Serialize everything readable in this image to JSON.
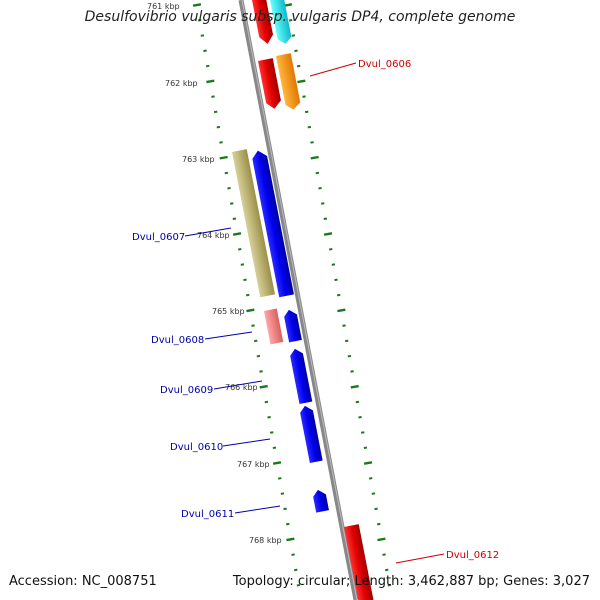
{
  "title": "Desulfovibrio vulgaris subsp. vulgaris DP4, complete genome",
  "footer": {
    "accession": "Accession: NC_008751",
    "topology": "Topology: circular; Length: 3,462,887 bp; Genes: 3,027"
  },
  "ticks": [
    {
      "label": "761 kbp"
    },
    {
      "label": "762 kbp"
    },
    {
      "label": "763 kbp"
    },
    {
      "label": "764 kbp"
    },
    {
      "label": "765 kbp"
    },
    {
      "label": "766 kbp"
    },
    {
      "label": "767 kbp"
    },
    {
      "label": "768 kbp"
    }
  ],
  "gene_labels": [
    {
      "text": "Dvul_0606",
      "color": "#cc0000"
    },
    {
      "text": "Dvul_0607",
      "color": "#0000aa"
    },
    {
      "text": "Dvul_0608",
      "color": "#0000aa"
    },
    {
      "text": "Dvul_0609",
      "color": "#0000aa"
    },
    {
      "text": "Dvul_0610",
      "color": "#0000aa"
    },
    {
      "text": "Dvul_0611",
      "color": "#0000aa"
    },
    {
      "text": "Dvul_0612",
      "color": "#cc0000"
    }
  ],
  "colors": {
    "backbone": "#888888",
    "tick_dash": "#1a7a1a",
    "red_feature": "#e00000",
    "cyan_feature": "#22dddd",
    "orange_feature": "#ff9900",
    "blue_feature": "#0000ee",
    "olive_feature": "#bdb36a",
    "pink_feature": "#ee8080"
  }
}
